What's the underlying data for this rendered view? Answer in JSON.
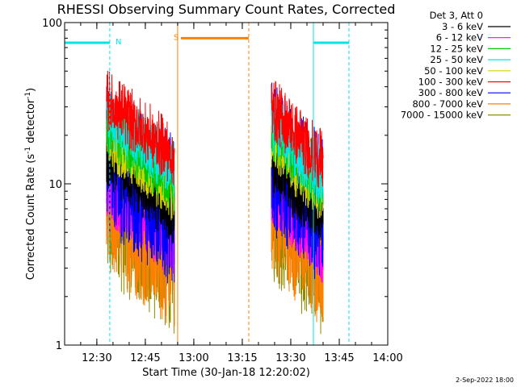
{
  "chart_data": {
    "type": "line",
    "title": "RHESSI Observing Summary Count Rates, Corrected",
    "xlabel": "Start Time (30-Jan-18 12:20:02)",
    "ylabel_parts": {
      "pre": "Corrected Count Rate (s",
      "sup1": "-1",
      "mid": " detector",
      "sup2": "-1",
      "post": ")"
    },
    "yscale": "log",
    "ylim": [
      1,
      100
    ],
    "xlim": [
      "12:20:02",
      "14:00:00"
    ],
    "x_ticks": [
      "12:30",
      "12:45",
      "13:00",
      "13:15",
      "13:30",
      "13:45",
      "14:00"
    ],
    "y_ticks": [
      "1",
      "10",
      "100"
    ],
    "legend_header": "Det 3, Att 0",
    "series": [
      {
        "name": "3 - 6 keV",
        "color": "#000000",
        "level1": 13,
        "level2": 12
      },
      {
        "name": "6 - 12 keV",
        "color": "#ff00ff",
        "level1": 8,
        "level2": 7.5
      },
      {
        "name": "12 - 25 keV",
        "color": "#00c800",
        "level1": 21,
        "level2": 20
      },
      {
        "name": "25 - 50 keV",
        "color": "#00e6e6",
        "level1": 25,
        "level2": 22
      },
      {
        "name": "50 - 100 keV",
        "color": "#d2d200",
        "level1": 18,
        "level2": 17
      },
      {
        "name": "100 - 300 keV",
        "color": "#ff0000",
        "level1": 30,
        "level2": 27
      },
      {
        "name": "300 - 800 keV",
        "color": "#0000ff",
        "level1": 11,
        "level2": 11
      },
      {
        "name": "800 - 7000 keV",
        "color": "#ff8000",
        "level1": 6,
        "level2": 6
      },
      {
        "name": "7000 - 15000 keV",
        "color": "#8c8c00",
        "level1": 5.5,
        "level2": 5.5
      }
    ],
    "segments": [
      {
        "start": "12:33:00",
        "end": "12:54:00"
      },
      {
        "start": "13:24:00",
        "end": "13:40:00"
      }
    ],
    "flags": [
      {
        "label": "N",
        "color": "#00e6e6",
        "level": 75,
        "segments": [
          [
            "12:20:02",
            "12:34:00"
          ],
          [
            "13:37:00",
            "13:48:00"
          ]
        ]
      },
      {
        "label": "S",
        "color": "#ff8000",
        "level": 80,
        "segments": [
          [
            "12:56:00",
            "13:17:00"
          ]
        ]
      }
    ],
    "vlines": [
      {
        "time": "12:20:02",
        "color": "#00e6e6",
        "style": "solid"
      },
      {
        "time": "12:34:00",
        "color": "#00e6e6",
        "style": "dashed"
      },
      {
        "time": "12:55:00",
        "color": "#ff8000",
        "style": "solid"
      },
      {
        "time": "13:17:00",
        "color": "#ff8000",
        "style": "dashed"
      },
      {
        "time": "13:37:00",
        "color": "#00e6e6",
        "style": "solid"
      },
      {
        "time": "13:48:00",
        "color": "#00e6e6",
        "style": "dashed"
      }
    ]
  },
  "footer": {
    "date_label": "2-Sep-2022 18:00"
  }
}
